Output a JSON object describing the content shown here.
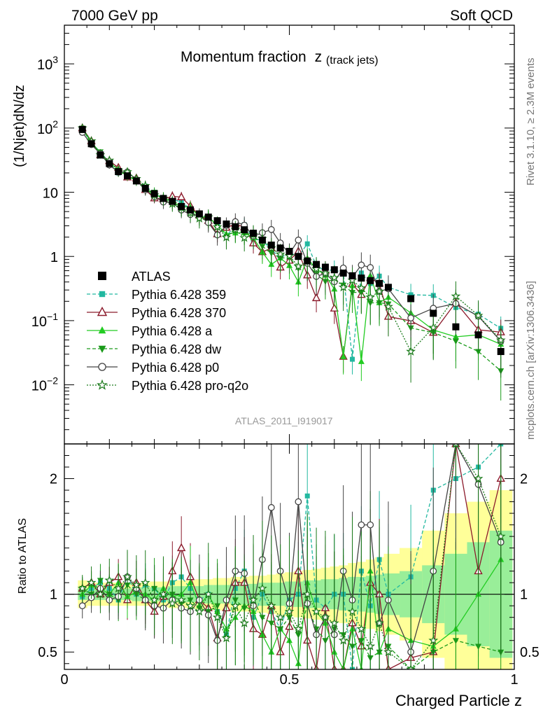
{
  "header": {
    "left": "7000 GeV pp",
    "right": "Soft QCD"
  },
  "side_labels": {
    "rivet": "Rivet 3.1.10, ≥ 2.3M events",
    "mcplots": "mcplots.cern.ch [arXiv:1306.3436]"
  },
  "chart_data": {
    "type": "scatter",
    "title": "Momentum fraction",
    "title_symbol": "z",
    "title_subscript": "(track jets)",
    "analysis_tag": "ATLAS_2011_I919017",
    "xlabel": "Charged Particle z",
    "ylabel": "(1/Njet)dN/dz",
    "ratio_ylabel": "Ratio to ATLAS",
    "xlim": [
      0,
      1
    ],
    "ylim_main": [
      0.0012,
      4000
    ],
    "ylim_ratio": [
      0.35,
      2.3
    ],
    "yscale_main": "log",
    "legend_position": "center-left",
    "x": [
      0.04,
      0.06,
      0.08,
      0.1,
      0.12,
      0.14,
      0.16,
      0.18,
      0.2,
      0.22,
      0.24,
      0.26,
      0.28,
      0.3,
      0.32,
      0.34,
      0.36,
      0.38,
      0.4,
      0.42,
      0.44,
      0.46,
      0.48,
      0.5,
      0.52,
      0.54,
      0.56,
      0.58,
      0.6,
      0.62,
      0.64,
      0.66,
      0.68,
      0.7,
      0.72,
      0.77,
      0.82,
      0.87,
      0.92,
      0.97
    ],
    "series": [
      {
        "name": "ATLAS",
        "color": "#000000",
        "marker": "square",
        "line": "none",
        "role": "data",
        "values": [
          95,
          57,
          38,
          28,
          21,
          18,
          15,
          11.5,
          9.5,
          8,
          7.2,
          6,
          5.3,
          4.6,
          4.1,
          3.6,
          3.2,
          2.9,
          2.6,
          2.3,
          1.8,
          1.5,
          1.35,
          1.2,
          1.0,
          0.85,
          0.75,
          0.68,
          0.62,
          0.55,
          0.5,
          0.46,
          0.42,
          0.38,
          0.33,
          0.22,
          0.13,
          0.08,
          0.06,
          0.033
        ]
      },
      {
        "name": "Pythia 6.428 359",
        "color": "#22b8a0",
        "marker": "small-square",
        "line": "dashed",
        "ratio": [
          0.98,
          1.05,
          1.1,
          1.05,
          0.95,
          1.15,
          1.0,
          1.08,
          1.05,
          0.95,
          1.1,
          1.15,
          1.05,
          0.95,
          1.0,
          0.85,
          0.65,
          1.05,
          1.2,
          0.8,
          1.0,
          0.85,
          0.7,
          0.95,
          1.0,
          1.85,
          0.95,
          0.88,
          1.0,
          1.0,
          0.05,
          1.2,
          0.9,
          1.3,
          1.0,
          1.15,
          1.9,
          2.0,
          2.1,
          2.3
        ]
      },
      {
        "name": "Pythia 6.428 370",
        "color": "#8b1a2b",
        "marker": "open-triangle",
        "line": "solid",
        "ratio": [
          1.05,
          1.1,
          1.0,
          1.1,
          1.15,
          0.95,
          1.1,
          0.95,
          0.85,
          0.98,
          1.2,
          1.4,
          1.15,
          0.95,
          0.88,
          0.62,
          0.88,
          1.1,
          1.1,
          0.7,
          0.65,
          0.9,
          0.5,
          0.72,
          1.2,
          0.6,
          0.3,
          0.88,
          0.25,
          0.05,
          0.75,
          0.55,
          1.1,
          1.0,
          0.35,
          0.45,
          0.5,
          2.4,
          1.2,
          2.0
        ]
      },
      {
        "name": "Pythia 6.428 a",
        "color": "#22cc22",
        "marker": "triangle",
        "line": "solid",
        "ratio": [
          1.0,
          1.08,
          1.05,
          1.0,
          1.1,
          0.98,
          1.02,
          1.0,
          0.95,
          1.05,
          0.98,
          1.0,
          1.1,
          0.9,
          1.0,
          0.85,
          0.7,
          0.8,
          0.9,
          0.85,
          0.65,
          0.5,
          0.7,
          0.6,
          0.4,
          1.1,
          0.85,
          0.75,
          0.5,
          0.05,
          0.7,
          0.05,
          1.2,
          0.5,
          0.7,
          0.6,
          0.55,
          0.7,
          1.0,
          1.3
        ]
      },
      {
        "name": "Pythia 6.428 dw",
        "color": "#1a9a1a",
        "marker": "inverted-triangle",
        "line": "dashed",
        "ratio": [
          1.05,
          1.0,
          1.12,
          1.0,
          0.95,
          1.08,
          1.0,
          0.95,
          1.05,
          0.98,
          1.0,
          0.92,
          0.95,
          0.88,
          0.85,
          0.9,
          0.62,
          0.95,
          0.88,
          0.95,
          0.8,
          0.75,
          0.7,
          0.8,
          0.65,
          0.9,
          0.7,
          0.6,
          0.7,
          0.65,
          0.55,
          0.6,
          0.45,
          0.5,
          0.55,
          0.35,
          0.5,
          0.6,
          0.55,
          0.5
        ]
      },
      {
        "name": "Pythia 6.428 p0",
        "color": "#444444",
        "marker": "open-circle",
        "line": "solid",
        "ratio": [
          0.9,
          0.97,
          1.05,
          0.95,
          0.98,
          1.15,
          1.05,
          0.95,
          0.9,
          0.88,
          0.95,
          0.88,
          0.85,
          0.95,
          0.82,
          0.6,
          0.95,
          1.2,
          1.18,
          0.9,
          1.3,
          1.75,
          1.2,
          0.92,
          1.8,
          0.92,
          0.65,
          0.8,
          0.65,
          1.2,
          0.95,
          1.6,
          1.6,
          0.75,
          0.95,
          0.5,
          1.2,
          2.3,
          1.95,
          1.45
        ]
      },
      {
        "name": "Pythia 6.428 pro-q2o",
        "color": "#1a7a1a",
        "marker": "star",
        "line": "dotted",
        "ratio": [
          1.05,
          1.1,
          1.0,
          1.12,
          1.05,
          1.15,
          1.08,
          1.1,
          0.95,
          1.0,
          0.92,
          0.95,
          0.9,
          0.85,
          1.0,
          0.8,
          0.62,
          0.9,
          0.75,
          0.95,
          1.05,
          0.9,
          0.8,
          0.85,
          0.7,
          1.0,
          0.85,
          0.8,
          0.75,
          0.6,
          0.85,
          0.7,
          0.55,
          0.75,
          0.5,
          0.15,
          0.6,
          3.0,
          2.0,
          1.5
        ]
      }
    ],
    "uncertainty_bands": {
      "inner_color": "#99ee99",
      "outer_color": "#ffff99",
      "inner_halfwidth": [
        0.05,
        0.05,
        0.05,
        0.05,
        0.05,
        0.05,
        0.06,
        0.06,
        0.06,
        0.06,
        0.07,
        0.07,
        0.07,
        0.07,
        0.08,
        0.08,
        0.08,
        0.09,
        0.09,
        0.09,
        0.1,
        0.1,
        0.1,
        0.11,
        0.11,
        0.12,
        0.12,
        0.13,
        0.13,
        0.14,
        0.15,
        0.15,
        0.16,
        0.17,
        0.18,
        0.2,
        0.25,
        0.35,
        0.45,
        0.55
      ],
      "outer_halfwidth": [
        0.12,
        0.1,
        0.1,
        0.1,
        0.1,
        0.1,
        0.1,
        0.1,
        0.11,
        0.11,
        0.12,
        0.12,
        0.12,
        0.13,
        0.13,
        0.14,
        0.14,
        0.15,
        0.15,
        0.16,
        0.16,
        0.17,
        0.18,
        0.19,
        0.2,
        0.21,
        0.22,
        0.23,
        0.24,
        0.25,
        0.27,
        0.28,
        0.3,
        0.32,
        0.35,
        0.4,
        0.55,
        0.7,
        0.8,
        0.9
      ]
    },
    "x_ticks": [
      "0",
      "0.5",
      "1"
    ],
    "ratio_ticks": [
      "0.5",
      "1",
      "2"
    ]
  }
}
